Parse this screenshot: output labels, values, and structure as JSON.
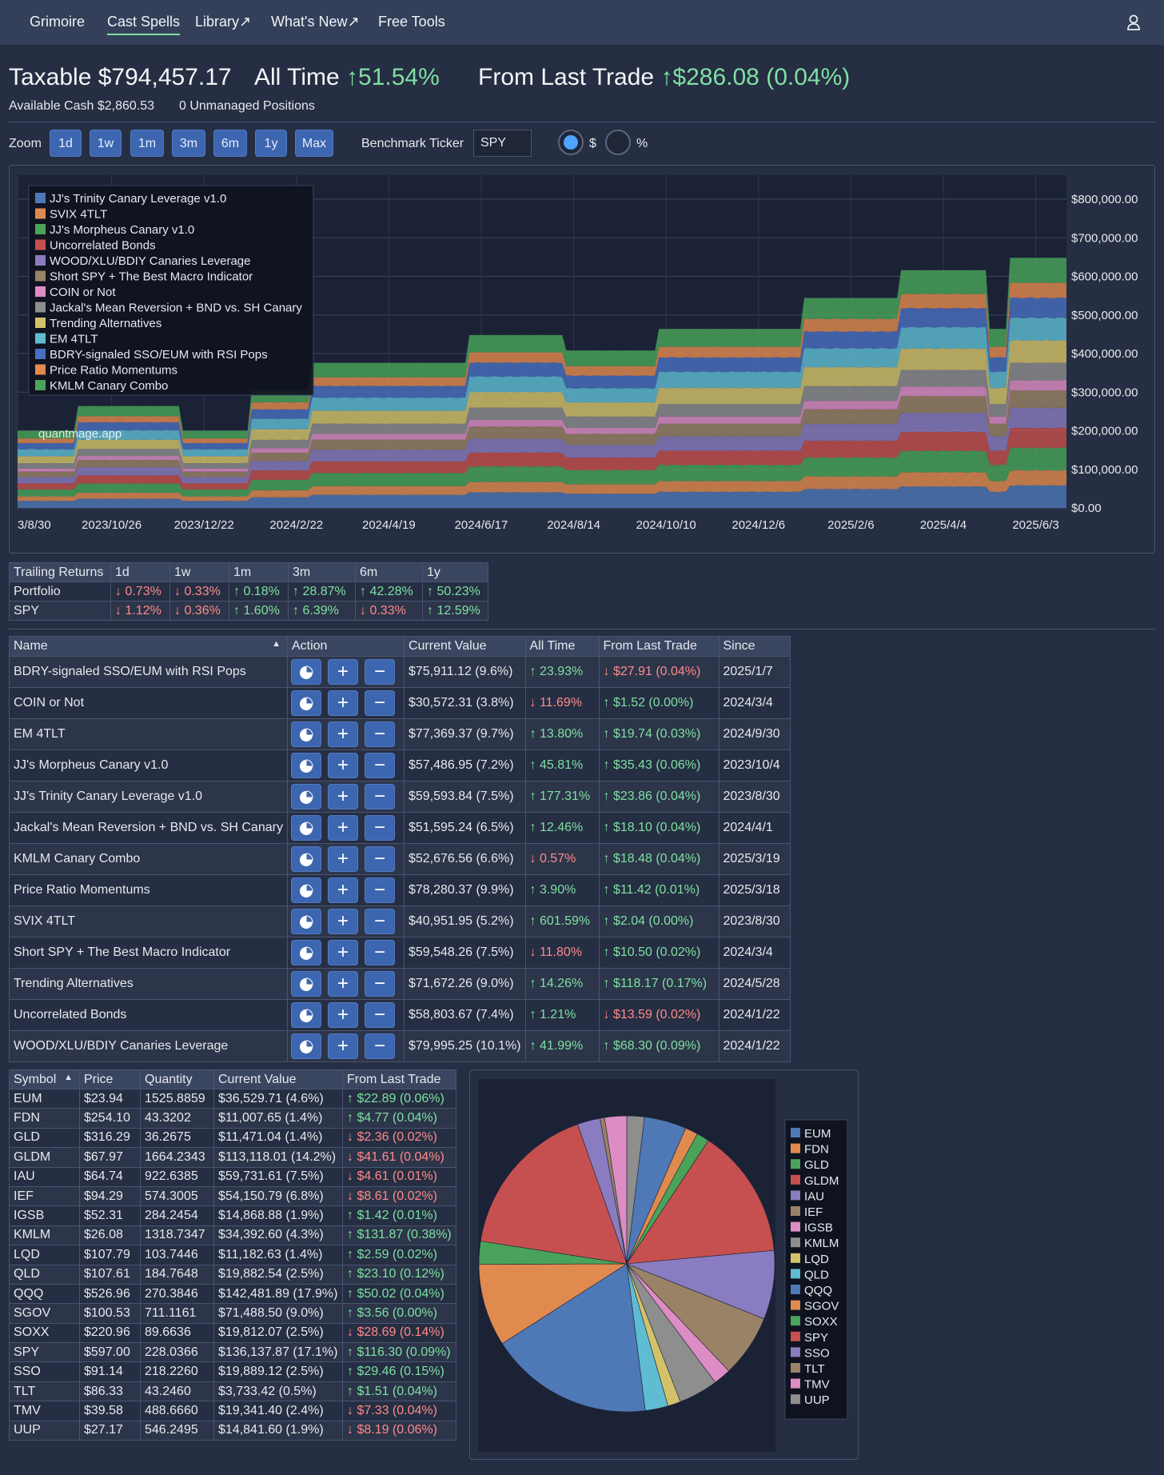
{
  "nav": {
    "items": [
      "Grimoire",
      "Cast Spells",
      "Library↗",
      "What's New↗",
      "Free Tools"
    ],
    "active": "Cast Spells"
  },
  "summary": {
    "taxable_label": "Taxable",
    "taxable_value": "$794,457.17",
    "all_time_label": "All Time",
    "all_time_value": "51.54%",
    "last_trade_label": "From Last Trade",
    "last_trade_value": "$286.08 (0.04%)",
    "available_cash": "Available Cash $2,860.53",
    "unmanaged": "0 Unmanaged Positions"
  },
  "controls": {
    "zoom_label": "Zoom",
    "zoom_buttons": [
      "1d",
      "1w",
      "1m",
      "3m",
      "6m",
      "1y",
      "Max"
    ],
    "benchmark_label": "Benchmark Ticker",
    "benchmark_value": "SPY",
    "radio_dollar": "$",
    "radio_percent": "%",
    "selected_mode": "$"
  },
  "chart_data": {
    "type": "area",
    "stacked": true,
    "watermark": "quantmage.app",
    "x_ticks": [
      "3/8/30",
      "2023/10/26",
      "2023/12/22",
      "2024/2/22",
      "2024/4/19",
      "2024/6/17",
      "2024/8/14",
      "2024/10/10",
      "2024/12/6",
      "2025/2/6",
      "2025/4/4",
      "2025/6/3"
    ],
    "y_ticks": [
      "$800,000.00",
      "$700,000.00",
      "$600,000.00",
      "$500,000.00",
      "$400,000.00",
      "$300,000.00",
      "$200,000.00",
      "$100,000.00",
      "$0.00"
    ],
    "ylim": [
      0,
      800000
    ],
    "legend_position": "top-left",
    "series": [
      {
        "name": "JJ's Trinity Canary Leverage v1.0",
        "color": "#4f78b6"
      },
      {
        "name": "SVIX 4TLT",
        "color": "#e08a4f"
      },
      {
        "name": "JJ's Morpheus Canary v1.0",
        "color": "#4aa35a"
      },
      {
        "name": "Uncorrelated Bonds",
        "color": "#c6504f"
      },
      {
        "name": "WOOD/XLU/BDIY Canaries Leverage",
        "color": "#8a7cc0"
      },
      {
        "name": "Short SPY + The Best Macro Indicator",
        "color": "#9a8266"
      },
      {
        "name": "COIN or Not",
        "color": "#de8dc4"
      },
      {
        "name": "Jackal's Mean Reversion + BND vs. SH Canary",
        "color": "#8e8e8e"
      },
      {
        "name": "Trending Alternatives",
        "color": "#d4c26a"
      },
      {
        "name": "EM 4TLT",
        "color": "#5fbcd3"
      },
      {
        "name": "BDRY-signaled SSO/EUM with RSI Pops",
        "color": "#4a6fc0"
      },
      {
        "name": "Price Ratio Momentums",
        "color": "#e2894f"
      },
      {
        "name": "KMLM Canary Combo",
        "color": "#4aa35a"
      }
    ]
  },
  "trailing": {
    "headers": [
      "Trailing Returns",
      "1d",
      "1w",
      "1m",
      "3m",
      "6m",
      "1y"
    ],
    "rows": [
      {
        "label": "Portfolio",
        "cells": [
          {
            "v": "0.73%",
            "d": "down"
          },
          {
            "v": "0.33%",
            "d": "down"
          },
          {
            "v": "0.18%",
            "d": "up"
          },
          {
            "v": "28.87%",
            "d": "up"
          },
          {
            "v": "42.28%",
            "d": "up"
          },
          {
            "v": "50.23%",
            "d": "up"
          }
        ]
      },
      {
        "label": "SPY",
        "cells": [
          {
            "v": "1.12%",
            "d": "down"
          },
          {
            "v": "0.36%",
            "d": "down"
          },
          {
            "v": "1.60%",
            "d": "up"
          },
          {
            "v": "6.39%",
            "d": "up"
          },
          {
            "v": "0.33%",
            "d": "down"
          },
          {
            "v": "12.59%",
            "d": "up"
          }
        ]
      }
    ]
  },
  "spells": {
    "headers": [
      "Name",
      "Action",
      "Current Value",
      "All Time",
      "From Last Trade",
      "Since"
    ],
    "rows": [
      {
        "name": "BDRY-signaled SSO/EUM with RSI Pops",
        "value": "$75,911.12 (9.6%)",
        "all": "23.93%",
        "all_d": "up",
        "last": "$27.91 (0.04%)",
        "last_d": "down",
        "since": "2025/1/7"
      },
      {
        "name": "COIN or Not",
        "value": "$30,572.31 (3.8%)",
        "all": "11.69%",
        "all_d": "down",
        "last": "$1.52 (0.00%)",
        "last_d": "up",
        "since": "2024/3/4"
      },
      {
        "name": "EM 4TLT",
        "value": "$77,369.37 (9.7%)",
        "all": "13.80%",
        "all_d": "up",
        "last": "$19.74 (0.03%)",
        "last_d": "up",
        "since": "2024/9/30"
      },
      {
        "name": "JJ's Morpheus Canary v1.0",
        "value": "$57,486.95 (7.2%)",
        "all": "45.81%",
        "all_d": "up",
        "last": "$35.43 (0.06%)",
        "last_d": "up",
        "since": "2023/10/4"
      },
      {
        "name": "JJ's Trinity Canary Leverage v1.0",
        "value": "$59,593.84 (7.5%)",
        "all": "177.31%",
        "all_d": "up",
        "last": "$23.86 (0.04%)",
        "last_d": "up",
        "since": "2023/8/30"
      },
      {
        "name": "Jackal's Mean Reversion + BND vs. SH Canary",
        "value": "$51,595.24 (6.5%)",
        "all": "12.46%",
        "all_d": "up",
        "last": "$18.10 (0.04%)",
        "last_d": "up",
        "since": "2024/4/1"
      },
      {
        "name": "KMLM Canary Combo",
        "value": "$52,676.56 (6.6%)",
        "all": "0.57%",
        "all_d": "down",
        "last": "$18.48 (0.04%)",
        "last_d": "up",
        "since": "2025/3/19"
      },
      {
        "name": "Price Ratio Momentums",
        "value": "$78,280.37 (9.9%)",
        "all": "3.90%",
        "all_d": "up",
        "last": "$11.42 (0.01%)",
        "last_d": "up",
        "since": "2025/3/18"
      },
      {
        "name": "SVIX 4TLT",
        "value": "$40,951.95 (5.2%)",
        "all": "601.59%",
        "all_d": "up",
        "last": "$2.04 (0.00%)",
        "last_d": "up",
        "since": "2023/8/30"
      },
      {
        "name": "Short SPY + The Best Macro Indicator",
        "value": "$59,548.26 (7.5%)",
        "all": "11.80%",
        "all_d": "down",
        "last": "$10.50 (0.02%)",
        "last_d": "up",
        "since": "2024/3/4"
      },
      {
        "name": "Trending Alternatives",
        "value": "$71,672.26 (9.0%)",
        "all": "14.26%",
        "all_d": "up",
        "last": "$118.17 (0.17%)",
        "last_d": "up",
        "since": "2024/5/28"
      },
      {
        "name": "Uncorrelated Bonds",
        "value": "$58,803.67 (7.4%)",
        "all": "1.21%",
        "all_d": "up",
        "last": "$13.59 (0.02%)",
        "last_d": "down",
        "since": "2024/1/22"
      },
      {
        "name": "WOOD/XLU/BDIY Canaries Leverage",
        "value": "$79,995.25 (10.1%)",
        "all": "41.99%",
        "all_d": "up",
        "last": "$68.30 (0.09%)",
        "last_d": "up",
        "since": "2024/1/22"
      }
    ]
  },
  "holdings": {
    "headers": [
      "Symbol",
      "Price",
      "Quantity",
      "Current Value",
      "From Last Trade"
    ],
    "rows": [
      {
        "sym": "EUM",
        "price": "$23.94",
        "qty": "1525.8859",
        "value": "$36,529.71 (4.6%)",
        "last": "$22.89 (0.06%)",
        "d": "up",
        "pct": 4.6,
        "color": "#4f78b6"
      },
      {
        "sym": "FDN",
        "price": "$254.10",
        "qty": "43.3202",
        "value": "$11,007.65 (1.4%)",
        "last": "$4.77 (0.04%)",
        "d": "up",
        "pct": 1.4,
        "color": "#e08a4f"
      },
      {
        "sym": "GLD",
        "price": "$316.29",
        "qty": "36.2675",
        "value": "$11,471.04 (1.4%)",
        "last": "$2.36 (0.02%)",
        "d": "down",
        "pct": 1.4,
        "color": "#4aa35a"
      },
      {
        "sym": "GLDM",
        "price": "$67.97",
        "qty": "1664.2343",
        "value": "$113,118.01 (14.2%)",
        "last": "$41.61 (0.04%)",
        "d": "down",
        "pct": 14.2,
        "color": "#c6504f"
      },
      {
        "sym": "IAU",
        "price": "$64.74",
        "qty": "922.6385",
        "value": "$59,731.61 (7.5%)",
        "last": "$4.61 (0.01%)",
        "d": "down",
        "pct": 7.5,
        "color": "#8a7cc0"
      },
      {
        "sym": "IEF",
        "price": "$94.29",
        "qty": "574.3005",
        "value": "$54,150.79 (6.8%)",
        "last": "$8.61 (0.02%)",
        "d": "down",
        "pct": 6.8,
        "color": "#9a8266"
      },
      {
        "sym": "IGSB",
        "price": "$52.31",
        "qty": "284.2454",
        "value": "$14,868.88 (1.9%)",
        "last": "$1.42 (0.01%)",
        "d": "up",
        "pct": 1.9,
        "color": "#de8dc4"
      },
      {
        "sym": "KMLM",
        "price": "$26.08",
        "qty": "1318.7347",
        "value": "$34,392.60 (4.3%)",
        "last": "$131.87 (0.38%)",
        "d": "up",
        "pct": 4.3,
        "color": "#8e8e8e"
      },
      {
        "sym": "LQD",
        "price": "$107.79",
        "qty": "103.7446",
        "value": "$11,182.63 (1.4%)",
        "last": "$2.59 (0.02%)",
        "d": "up",
        "pct": 1.4,
        "color": "#d4c26a"
      },
      {
        "sym": "QLD",
        "price": "$107.61",
        "qty": "184.7648",
        "value": "$19,882.54 (2.5%)",
        "last": "$23.10 (0.12%)",
        "d": "up",
        "pct": 2.5,
        "color": "#5fbcd3"
      },
      {
        "sym": "QQQ",
        "price": "$526.96",
        "qty": "270.3846",
        "value": "$142,481.89 (17.9%)",
        "last": "$50.02 (0.04%)",
        "d": "up",
        "pct": 17.9,
        "color": "#4f78b6"
      },
      {
        "sym": "SGOV",
        "price": "$100.53",
        "qty": "711.1161",
        "value": "$71,488.50 (9.0%)",
        "last": "$3.56 (0.00%)",
        "d": "up",
        "pct": 9.0,
        "color": "#e08a4f"
      },
      {
        "sym": "SOXX",
        "price": "$220.96",
        "qty": "89.6636",
        "value": "$19,812.07 (2.5%)",
        "last": "$28.69 (0.14%)",
        "d": "down",
        "pct": 2.5,
        "color": "#4aa35a"
      },
      {
        "sym": "SPY",
        "price": "$597.00",
        "qty": "228.0366",
        "value": "$136,137.87 (17.1%)",
        "last": "$116.30 (0.09%)",
        "d": "up",
        "pct": 17.1,
        "color": "#c6504f"
      },
      {
        "sym": "SSO",
        "price": "$91.14",
        "qty": "218.2260",
        "value": "$19,889.12 (2.5%)",
        "last": "$29.46 (0.15%)",
        "d": "up",
        "pct": 2.5,
        "color": "#8a7cc0"
      },
      {
        "sym": "TLT",
        "price": "$86.33",
        "qty": "43.2460",
        "value": "$3,733.42 (0.5%)",
        "last": "$1.51 (0.04%)",
        "d": "up",
        "pct": 0.5,
        "color": "#9a8266"
      },
      {
        "sym": "TMV",
        "price": "$39.58",
        "qty": "488.6660",
        "value": "$19,341.40 (2.4%)",
        "last": "$7.33 (0.04%)",
        "d": "down",
        "pct": 2.4,
        "color": "#de8dc4"
      },
      {
        "sym": "UUP",
        "price": "$27.17",
        "qty": "546.2495",
        "value": "$14,841.60 (1.9%)",
        "last": "$8.19 (0.06%)",
        "d": "down",
        "pct": 1.9,
        "color": "#8e8e8e"
      }
    ]
  }
}
